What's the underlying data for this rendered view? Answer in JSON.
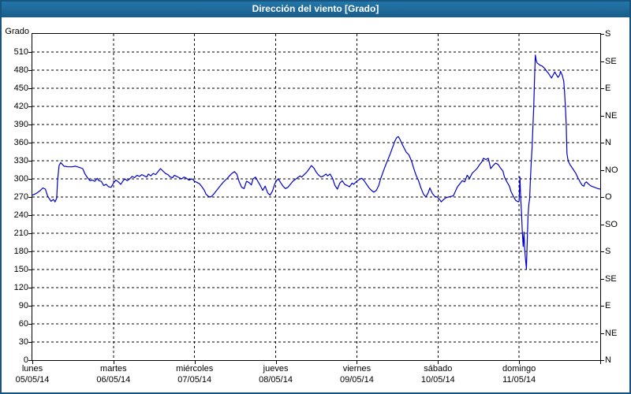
{
  "window": {
    "title": "Dirección del viento [Grado]"
  },
  "colors": {
    "title_bar_top": "#2578ab",
    "title_bar_bottom": "#195c88",
    "frame_border": "#17547f",
    "plot_border": "#000000",
    "grid": "#000000",
    "series_line": "#0000cd",
    "text": "#000000",
    "background": "#ffffff"
  },
  "chart_data": {
    "type": "line",
    "title": "Dirección del viento [Grado]",
    "grid": {
      "horizontal": "dashed every 30°",
      "vertical": "dashed at day boundaries"
    },
    "y_axis": {
      "label": "Grado",
      "min": 0,
      "max": 540,
      "tick_step": 30,
      "max_labeled_tick": 510
    },
    "y2_axis": {
      "tick_step_degrees": 45,
      "labels_from_bottom": [
        "N",
        "NE",
        "E",
        "SE",
        "S",
        "SO",
        "O",
        "NO",
        "N",
        "NE",
        "E",
        "SE",
        "S"
      ]
    },
    "x_axis": {
      "unit": "days",
      "range_days": [
        0,
        7
      ],
      "days": [
        {
          "name": "lunes",
          "date": "05/05/14"
        },
        {
          "name": "martes",
          "date": "06/05/14"
        },
        {
          "name": "miércoles",
          "date": "07/05/14"
        },
        {
          "name": "jueves",
          "date": "08/05/14"
        },
        {
          "name": "viernes",
          "date": "09/05/14"
        },
        {
          "name": "sábado",
          "date": "10/05/14"
        },
        {
          "name": "domingo",
          "date": "11/05/14"
        }
      ]
    },
    "series": [
      {
        "name": "Dirección del viento [Grado]",
        "color": "#0000cd",
        "points": [
          [
            0.0,
            273
          ],
          [
            0.05,
            276
          ],
          [
            0.1,
            281
          ],
          [
            0.13,
            285
          ],
          [
            0.16,
            283
          ],
          [
            0.19,
            271
          ],
          [
            0.23,
            263
          ],
          [
            0.26,
            266
          ],
          [
            0.28,
            262
          ],
          [
            0.3,
            268
          ],
          [
            0.31,
            296
          ],
          [
            0.33,
            322
          ],
          [
            0.35,
            327
          ],
          [
            0.39,
            321
          ],
          [
            0.44,
            320
          ],
          [
            0.49,
            320
          ],
          [
            0.53,
            321
          ],
          [
            0.58,
            319
          ],
          [
            0.62,
            317
          ],
          [
            0.65,
            308
          ],
          [
            0.68,
            302
          ],
          [
            0.71,
            297
          ],
          [
            0.74,
            298
          ],
          [
            0.77,
            296
          ],
          [
            0.8,
            301
          ],
          [
            0.82,
            297
          ],
          [
            0.85,
            296
          ],
          [
            0.88,
            289
          ],
          [
            0.91,
            291
          ],
          [
            0.94,
            287
          ],
          [
            0.97,
            286
          ],
          [
            1.0,
            293
          ],
          [
            1.03,
            298
          ],
          [
            1.06,
            295
          ],
          [
            1.09,
            291
          ],
          [
            1.12,
            297
          ],
          [
            1.14,
            300
          ],
          [
            1.17,
            297
          ],
          [
            1.2,
            300
          ],
          [
            1.23,
            304
          ],
          [
            1.26,
            302
          ],
          [
            1.29,
            306
          ],
          [
            1.32,
            304
          ],
          [
            1.35,
            307
          ],
          [
            1.38,
            305
          ],
          [
            1.41,
            303
          ],
          [
            1.43,
            308
          ],
          [
            1.46,
            305
          ],
          [
            1.49,
            309
          ],
          [
            1.52,
            307
          ],
          [
            1.55,
            312
          ],
          [
            1.58,
            317
          ],
          [
            1.61,
            313
          ],
          [
            1.64,
            309
          ],
          [
            1.67,
            307
          ],
          [
            1.7,
            303
          ],
          [
            1.73,
            302
          ],
          [
            1.75,
            306
          ],
          [
            1.78,
            304
          ],
          [
            1.81,
            302
          ],
          [
            1.84,
            300
          ],
          [
            1.87,
            303
          ],
          [
            1.9,
            301
          ],
          [
            1.93,
            298
          ],
          [
            1.97,
            300
          ],
          [
            2.0,
            296
          ],
          [
            2.03,
            294
          ],
          [
            2.06,
            292
          ],
          [
            2.09,
            287
          ],
          [
            2.12,
            281
          ],
          [
            2.14,
            275
          ],
          [
            2.17,
            271
          ],
          [
            2.2,
            270
          ],
          [
            2.23,
            274
          ],
          [
            2.26,
            279
          ],
          [
            2.29,
            284
          ],
          [
            2.32,
            289
          ],
          [
            2.35,
            294
          ],
          [
            2.38,
            298
          ],
          [
            2.41,
            302
          ],
          [
            2.43,
            305
          ],
          [
            2.46,
            309
          ],
          [
            2.49,
            312
          ],
          [
            2.52,
            308
          ],
          [
            2.55,
            295
          ],
          [
            2.58,
            286
          ],
          [
            2.61,
            284
          ],
          [
            2.64,
            296
          ],
          [
            2.67,
            294
          ],
          [
            2.7,
            290
          ],
          [
            2.72,
            300
          ],
          [
            2.75,
            303
          ],
          [
            2.78,
            296
          ],
          [
            2.81,
            289
          ],
          [
            2.84,
            281
          ],
          [
            2.87,
            288
          ],
          [
            2.9,
            277
          ],
          [
            2.93,
            273
          ],
          [
            2.96,
            280
          ],
          [
            2.99,
            292
          ],
          [
            3.01,
            297
          ],
          [
            3.03,
            300
          ],
          [
            3.06,
            294
          ],
          [
            3.09,
            288
          ],
          [
            3.12,
            284
          ],
          [
            3.15,
            286
          ],
          [
            3.18,
            291
          ],
          [
            3.21,
            296
          ],
          [
            3.24,
            299
          ],
          [
            3.27,
            302
          ],
          [
            3.3,
            305
          ],
          [
            3.32,
            303
          ],
          [
            3.35,
            307
          ],
          [
            3.38,
            311
          ],
          [
            3.41,
            316
          ],
          [
            3.44,
            322
          ],
          [
            3.47,
            318
          ],
          [
            3.5,
            311
          ],
          [
            3.53,
            306
          ],
          [
            3.56,
            303
          ],
          [
            3.59,
            305
          ],
          [
            3.62,
            308
          ],
          [
            3.64,
            305
          ],
          [
            3.67,
            308
          ],
          [
            3.7,
            301
          ],
          [
            3.73,
            289
          ],
          [
            3.76,
            283
          ],
          [
            3.79,
            293
          ],
          [
            3.82,
            297
          ],
          [
            3.85,
            291
          ],
          [
            3.88,
            289
          ],
          [
            3.91,
            287
          ],
          [
            3.94,
            293
          ],
          [
            3.96,
            291
          ],
          [
            3.99,
            295
          ],
          [
            4.03,
            299
          ],
          [
            4.06,
            301
          ],
          [
            4.09,
            297
          ],
          [
            4.12,
            291
          ],
          [
            4.15,
            285
          ],
          [
            4.18,
            281
          ],
          [
            4.21,
            278
          ],
          [
            4.24,
            281
          ],
          [
            4.27,
            289
          ],
          [
            4.29,
            299
          ],
          [
            4.32,
            310
          ],
          [
            4.35,
            321
          ],
          [
            4.38,
            331
          ],
          [
            4.41,
            341
          ],
          [
            4.44,
            352
          ],
          [
            4.47,
            363
          ],
          [
            4.49,
            368
          ],
          [
            4.51,
            370
          ],
          [
            4.53,
            366
          ],
          [
            4.56,
            357
          ],
          [
            4.59,
            349
          ],
          [
            4.61,
            344
          ],
          [
            4.64,
            340
          ],
          [
            4.66,
            334
          ],
          [
            4.68,
            327
          ],
          [
            4.7,
            318
          ],
          [
            4.73,
            306
          ],
          [
            4.76,
            297
          ],
          [
            4.79,
            285
          ],
          [
            4.82,
            275
          ],
          [
            4.85,
            270
          ],
          [
            4.88,
            277
          ],
          [
            4.9,
            285
          ],
          [
            4.93,
            276
          ],
          [
            4.96,
            271
          ],
          [
            4.99,
            270
          ],
          [
            5.02,
            266
          ],
          [
            5.04,
            262
          ],
          [
            5.07,
            266
          ],
          [
            5.1,
            269
          ],
          [
            5.13,
            270
          ],
          [
            5.16,
            271
          ],
          [
            5.19,
            272
          ],
          [
            5.22,
            281
          ],
          [
            5.24,
            287
          ],
          [
            5.27,
            292
          ],
          [
            5.3,
            297
          ],
          [
            5.33,
            295
          ],
          [
            5.36,
            306
          ],
          [
            5.39,
            301
          ],
          [
            5.42,
            309
          ],
          [
            5.45,
            313
          ],
          [
            5.48,
            317
          ],
          [
            5.51,
            323
          ],
          [
            5.54,
            328
          ],
          [
            5.56,
            334
          ],
          [
            5.59,
            332
          ],
          [
            5.62,
            334
          ],
          [
            5.65,
            317
          ],
          [
            5.68,
            322
          ],
          [
            5.71,
            326
          ],
          [
            5.74,
            324
          ],
          [
            5.77,
            318
          ],
          [
            5.8,
            313
          ],
          [
            5.82,
            303
          ],
          [
            5.85,
            295
          ],
          [
            5.88,
            288
          ],
          [
            5.9,
            279
          ],
          [
            5.93,
            271
          ],
          [
            5.96,
            264
          ],
          [
            5.99,
            262
          ],
          [
            6.0,
            263
          ],
          [
            6.01,
            303
          ],
          [
            6.02,
            266
          ],
          [
            6.03,
            243
          ],
          [
            6.04,
            210
          ],
          [
            6.05,
            188
          ],
          [
            6.06,
            212
          ],
          [
            6.07,
            182
          ],
          [
            6.08,
            165
          ],
          [
            6.09,
            151
          ],
          [
            6.1,
            195
          ],
          [
            6.11,
            240
          ],
          [
            6.12,
            258
          ],
          [
            6.13,
            267
          ],
          [
            6.14,
            300
          ],
          [
            6.15,
            330
          ],
          [
            6.16,
            352
          ],
          [
            6.17,
            385
          ],
          [
            6.18,
            420
          ],
          [
            6.19,
            465
          ],
          [
            6.2,
            505
          ],
          [
            6.21,
            497
          ],
          [
            6.22,
            492
          ],
          [
            6.24,
            490
          ],
          [
            6.26,
            488
          ],
          [
            6.28,
            487
          ],
          [
            6.3,
            485
          ],
          [
            6.32,
            482
          ],
          [
            6.34,
            478
          ],
          [
            6.36,
            475
          ],
          [
            6.38,
            471
          ],
          [
            6.4,
            467
          ],
          [
            6.42,
            472
          ],
          [
            6.44,
            477
          ],
          [
            6.46,
            472
          ],
          [
            6.48,
            468
          ],
          [
            6.5,
            472
          ],
          [
            6.51,
            478
          ],
          [
            6.53,
            472
          ],
          [
            6.55,
            462
          ],
          [
            6.56,
            445
          ],
          [
            6.57,
            420
          ],
          [
            6.58,
            392
          ],
          [
            6.59,
            342
          ],
          [
            6.6,
            333
          ],
          [
            6.61,
            328
          ],
          [
            6.63,
            323
          ],
          [
            6.65,
            319
          ],
          [
            6.67,
            315
          ],
          [
            6.7,
            309
          ],
          [
            6.72,
            303
          ],
          [
            6.74,
            298
          ],
          [
            6.76,
            293
          ],
          [
            6.78,
            289
          ],
          [
            6.8,
            288
          ],
          [
            6.81,
            293
          ],
          [
            6.83,
            295
          ],
          [
            6.85,
            292
          ],
          [
            6.87,
            290
          ],
          [
            6.89,
            288
          ],
          [
            6.91,
            287
          ],
          [
            6.93,
            286
          ],
          [
            6.95,
            285
          ],
          [
            6.97,
            284
          ],
          [
            7.0,
            283
          ]
        ]
      }
    ]
  }
}
